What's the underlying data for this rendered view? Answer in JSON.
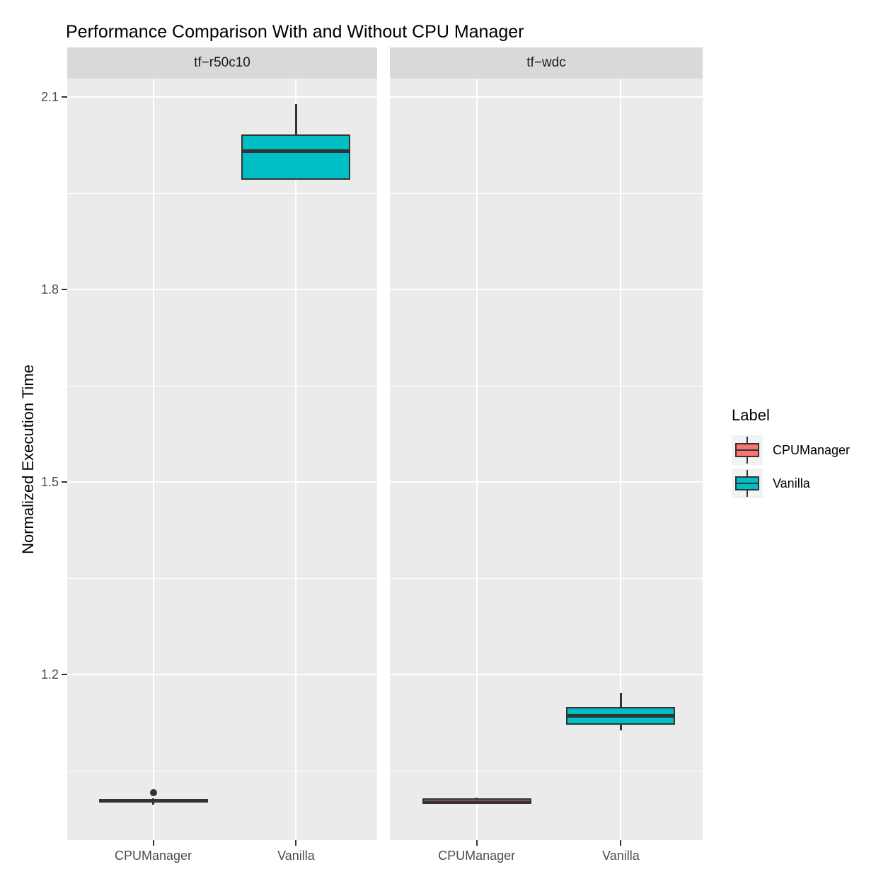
{
  "chart_data": {
    "type": "boxplot",
    "title": "Performance Comparison With and Without CPU Manager",
    "ylabel": "Normalized Execution Time",
    "xlabel": "",
    "categories": [
      "CPUManager",
      "Vanilla"
    ],
    "y_ticks": [
      1.2,
      1.5,
      1.8,
      2.1
    ],
    "ylim": [
      0.942,
      2.128
    ],
    "grid": "white major and minor horizontal gridlines, white vertical gridlines at category centers, on grey panel",
    "legend_position": "right",
    "legend": {
      "title": "Label",
      "items": [
        {
          "label": "CPUManager",
          "color": "#F8766D"
        },
        {
          "label": "Vanilla",
          "color": "#00BFC4"
        }
      ]
    },
    "facets": [
      {
        "label": "tf−r50c10",
        "boxes": [
          {
            "category": "CPUManager",
            "color_label": "CPUManager",
            "whisker_low": 0.997,
            "q1": 1.0,
            "median": 1.003,
            "q3": 1.006,
            "whisker_high": 1.007,
            "outliers": [
              1.016
            ]
          },
          {
            "category": "Vanilla",
            "color_label": "Vanilla",
            "whisker_low": 1.971,
            "q1": 1.971,
            "median": 2.016,
            "q3": 2.042,
            "whisker_high": 2.089,
            "outliers": []
          }
        ]
      },
      {
        "label": "tf−wdc",
        "boxes": [
          {
            "category": "CPUManager",
            "color_label": "CPUManager",
            "whisker_low": 0.998,
            "q1": 1.0,
            "median": 1.001,
            "q3": 1.007,
            "whisker_high": 1.008,
            "outliers": []
          },
          {
            "category": "Vanilla",
            "color_label": "Vanilla",
            "whisker_low": 1.113,
            "q1": 1.122,
            "median": 1.135,
            "q3": 1.149,
            "whisker_high": 1.171,
            "outliers": []
          }
        ]
      }
    ]
  }
}
